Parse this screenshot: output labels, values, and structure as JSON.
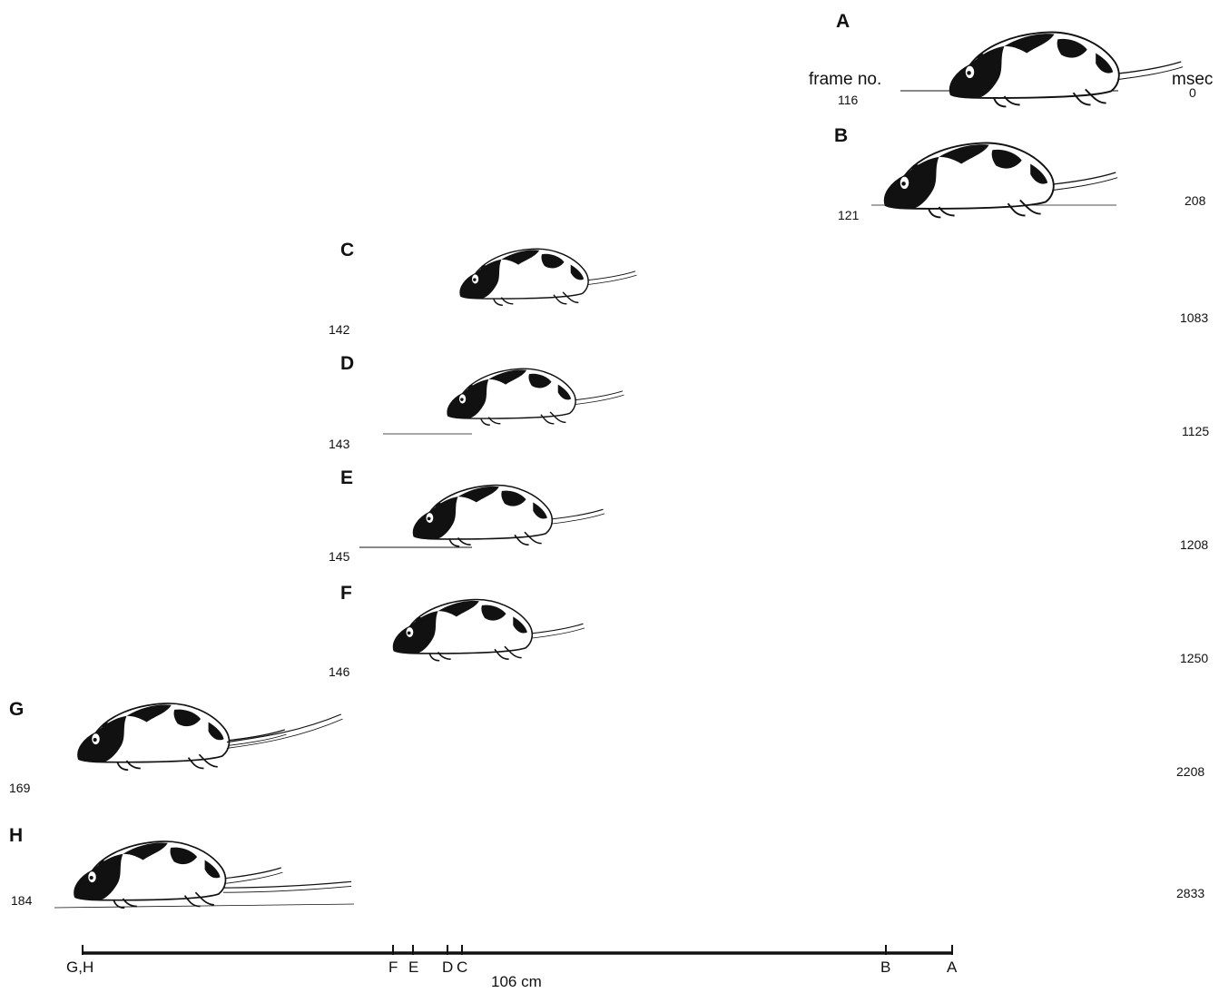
{
  "header": {
    "frame_label": "frame no.",
    "time_label": "msec"
  },
  "frames": [
    {
      "letter": "A",
      "frame_no": "116",
      "msec": "0"
    },
    {
      "letter": "B",
      "frame_no": "121",
      "msec": "208"
    },
    {
      "letter": "C",
      "frame_no": "142",
      "msec": "1083"
    },
    {
      "letter": "D",
      "frame_no": "143",
      "msec": "1125"
    },
    {
      "letter": "E",
      "frame_no": "145",
      "msec": "1208"
    },
    {
      "letter": "F",
      "frame_no": "146",
      "msec": "1250"
    },
    {
      "letter": "G",
      "frame_no": "169",
      "msec": "2208"
    },
    {
      "letter": "H",
      "frame_no": "184",
      "msec": "2833"
    }
  ],
  "scale": {
    "distance_label": "106 cm",
    "tick_labels": [
      "G,H",
      "F",
      "E",
      "D",
      "C",
      "B",
      "A"
    ]
  },
  "colors": {
    "ink": "#111111",
    "paper": "#ffffff"
  }
}
